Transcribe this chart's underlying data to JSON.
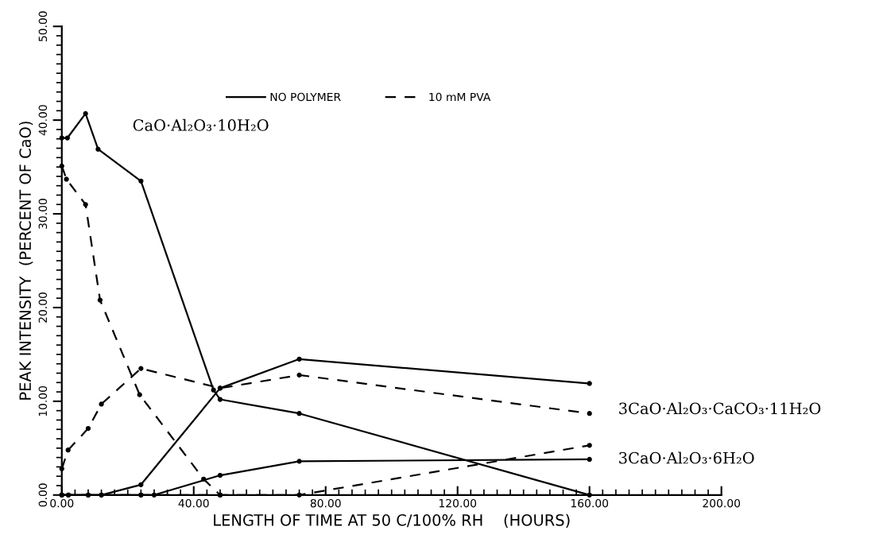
{
  "chart_data": {
    "type": "line",
    "xlabel": "LENGTH OF TIME AT 50 C/100% RH    (HOURS)",
    "ylabel": "PEAK INTENSITY  (PERCENT OF CaO)",
    "xlim": [
      0,
      200
    ],
    "ylim": [
      0,
      50
    ],
    "xticks": [
      {
        "value": 0,
        "label": "0.00"
      },
      {
        "value": 40,
        "label": "40.00"
      },
      {
        "value": 80,
        "label": "80.00"
      },
      {
        "value": 120,
        "label": "120.00"
      },
      {
        "value": 160,
        "label": "160.00"
      },
      {
        "value": 200,
        "label": "200.00"
      }
    ],
    "yticks": [
      {
        "value": 0,
        "label": "0.00"
      },
      {
        "value": 10,
        "label": "10.00"
      },
      {
        "value": 20,
        "label": "20.00"
      },
      {
        "value": 30,
        "label": "30.00"
      },
      {
        "value": 40,
        "label": "40.00"
      },
      {
        "value": 50,
        "label": "50.00"
      }
    ],
    "grid": false,
    "legend": "top",
    "marker": "circle",
    "series": [
      {
        "name": "NO POLYMER",
        "color": "#000000",
        "line_style": "solid",
        "x": [
          0,
          1.7,
          7.2,
          11,
          24,
          46,
          48,
          72,
          160
        ],
        "values": [
          38.1,
          38.1,
          40.7,
          36.9,
          33.5,
          11.2,
          10.2,
          8.7,
          0
        ]
      },
      {
        "color": "#000000",
        "line_style": "solid",
        "x": [
          0,
          2,
          8,
          12,
          24,
          48,
          72,
          160
        ],
        "values": [
          0,
          0,
          0,
          0,
          1.1,
          11.4,
          14.5,
          11.9
        ]
      },
      {
        "color": "#000000",
        "line_style": "solid",
        "x": [
          0,
          2,
          8,
          12,
          24,
          28,
          48,
          72,
          160
        ],
        "values": [
          0,
          0,
          0,
          0,
          0,
          0,
          2.1,
          3.6,
          3.8
        ]
      },
      {
        "name": "10 mM PVA",
        "color": "#000000",
        "line_style": "dashed",
        "x": [
          0,
          1.4,
          7.2,
          11.6,
          23.6,
          43,
          48
        ],
        "values": [
          35.1,
          33.7,
          31.0,
          20.8,
          10.7,
          1.7,
          0
        ]
      },
      {
        "color": "#000000",
        "line_style": "dashed",
        "x": [
          0,
          1.9,
          8,
          12,
          24,
          48,
          72,
          160
        ],
        "values": [
          2.8,
          4.8,
          7.1,
          9.7,
          13.5,
          11.4,
          12.8,
          8.7
        ]
      },
      {
        "color": "#000000",
        "line_style": "dashed",
        "x": [
          0,
          24,
          48,
          72,
          160
        ],
        "values": [
          0,
          0,
          0,
          0,
          5.3
        ]
      }
    ],
    "annotations": [
      "CaO·Al₂O₃·10H₂O",
      "3CaO·Al₂O₃·CaCO₃·11H₂O",
      "3CaO·Al₂O₃·6H₂O"
    ]
  }
}
